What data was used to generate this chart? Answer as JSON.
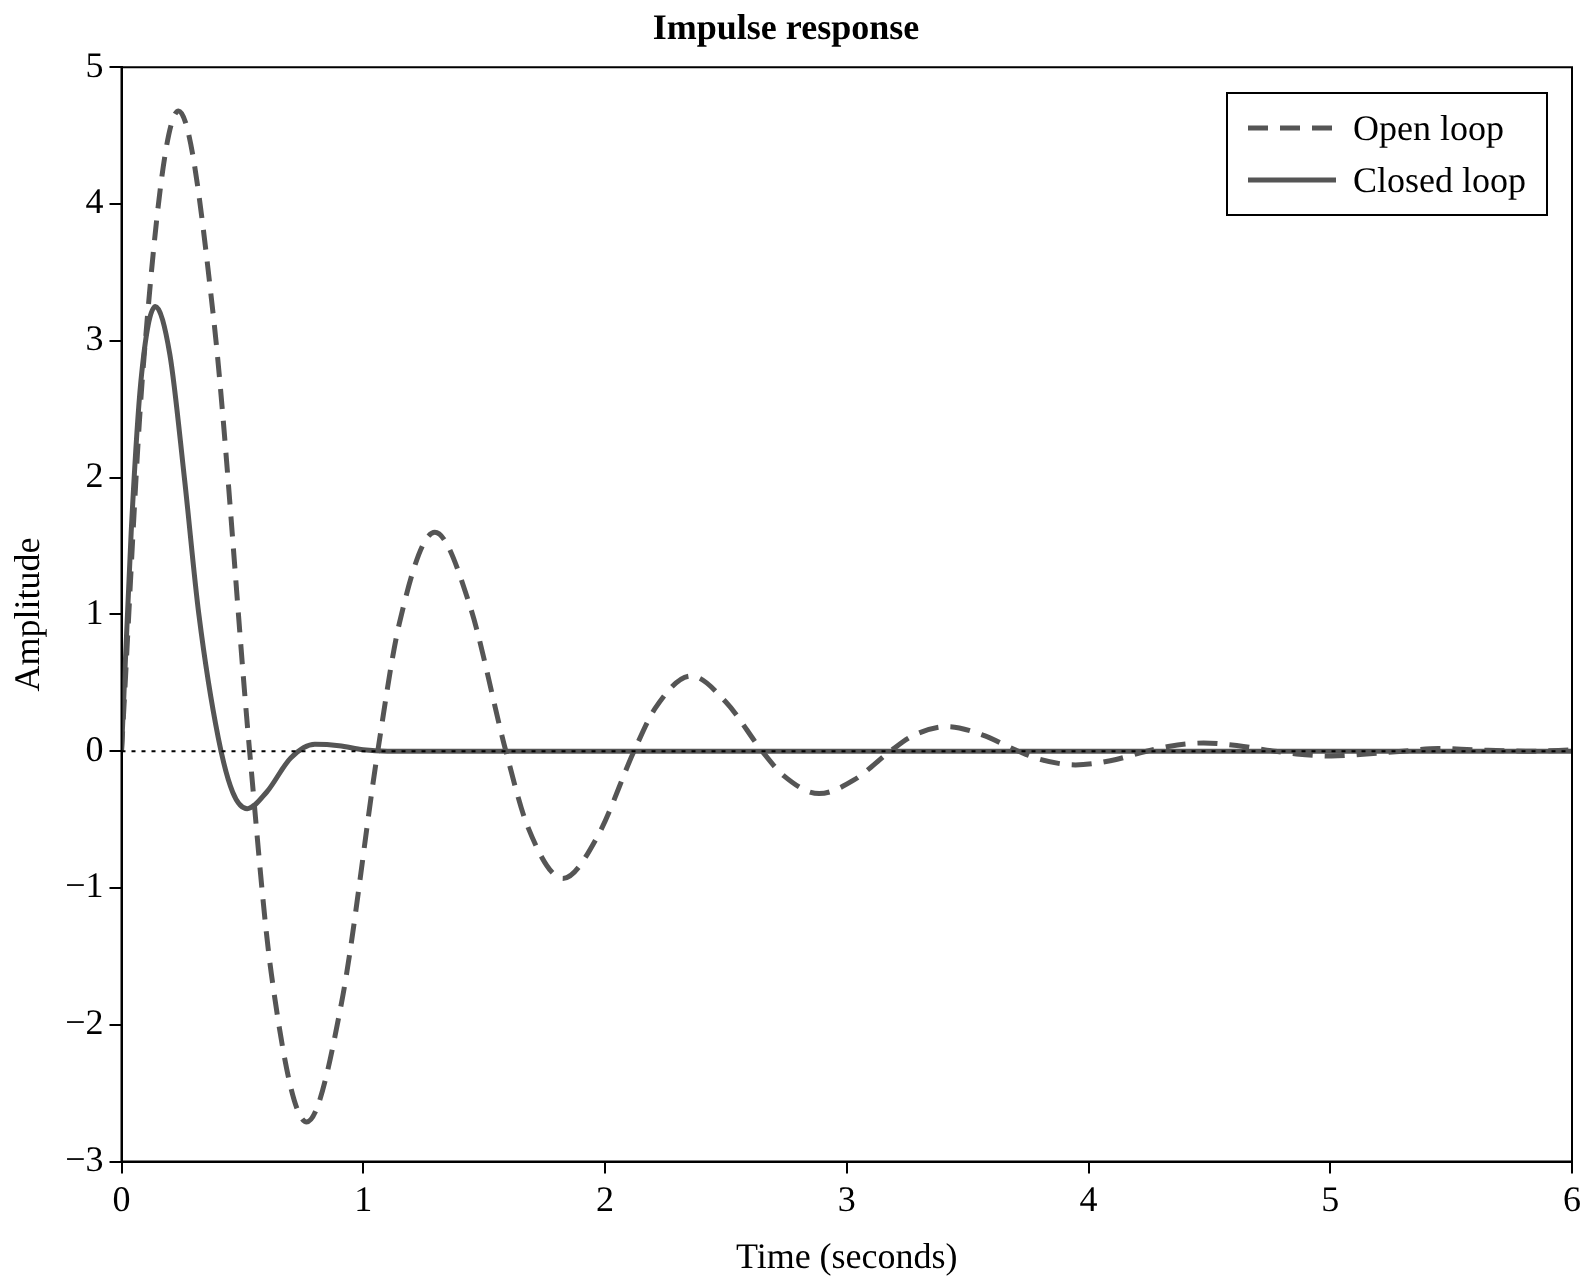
{
  "chart_data": {
    "type": "line",
    "title": "Impulse response",
    "xlabel": "Time (seconds)",
    "ylabel": "Amplitude",
    "xlim": [
      0,
      6
    ],
    "xticks": [
      0,
      1,
      2,
      3,
      4,
      5,
      6
    ],
    "ylim": [
      -3,
      5
    ],
    "yticks": [
      -3,
      -2,
      -1,
      0,
      1,
      2,
      3,
      4,
      5
    ],
    "grid": false,
    "legend": "top right",
    "marker": "none",
    "ref_lines": [
      {
        "axis": "y",
        "value": 0,
        "color": "#000000",
        "line_style": "dotted"
      }
    ],
    "series": [
      {
        "name": "Open loop",
        "color": "#555555",
        "line_style": "dashed",
        "x": [
          0,
          0.09,
          0.236,
          0.38,
          0.53,
          0.62,
          0.766,
          0.91,
          1.06,
          1.15,
          1.296,
          1.44,
          1.59,
          1.68,
          1.826,
          1.97,
          2.12,
          2.21,
          2.356,
          2.5,
          2.65,
          2.74,
          2.886,
          3.03,
          3.18,
          3.27,
          3.416,
          3.56,
          3.71,
          3.8,
          3.946,
          4.09,
          4.24,
          4.33,
          4.476,
          4.62,
          4.77,
          4.86,
          5.006,
          5.15,
          5.3,
          5.446,
          5.6,
          5.83,
          6
        ],
        "values": [
          0,
          2.81,
          4.68,
          3.18,
          0,
          -1.63,
          -2.71,
          -1.84,
          0,
          0.94,
          1.6,
          1.07,
          0,
          -0.55,
          -0.93,
          -0.62,
          0,
          0.32,
          0.55,
          0.36,
          0,
          -0.18,
          -0.31,
          -0.21,
          0,
          0.11,
          0.18,
          0.12,
          0,
          -0.06,
          -0.1,
          -0.07,
          0,
          0.035,
          0.06,
          0.04,
          0,
          -0.02,
          -0.035,
          -0.02,
          0,
          0.02,
          0.01,
          0,
          0.01
        ]
      },
      {
        "name": "Closed loop",
        "color": "#555555",
        "line_style": "solid",
        "x": [
          0,
          0.04,
          0.08,
          0.14,
          0.2,
          0.26,
          0.32,
          0.4,
          0.46,
          0.52,
          0.6,
          0.7,
          0.8,
          0.9,
          1.0,
          1.1,
          2,
          3,
          4,
          5,
          6
        ],
        "values": [
          0,
          1.6,
          2.7,
          3.25,
          2.9,
          2.0,
          1.0,
          0.1,
          -0.3,
          -0.42,
          -0.3,
          -0.05,
          0.05,
          0.04,
          0.01,
          0,
          0,
          0,
          0,
          0,
          0
        ]
      }
    ]
  }
}
